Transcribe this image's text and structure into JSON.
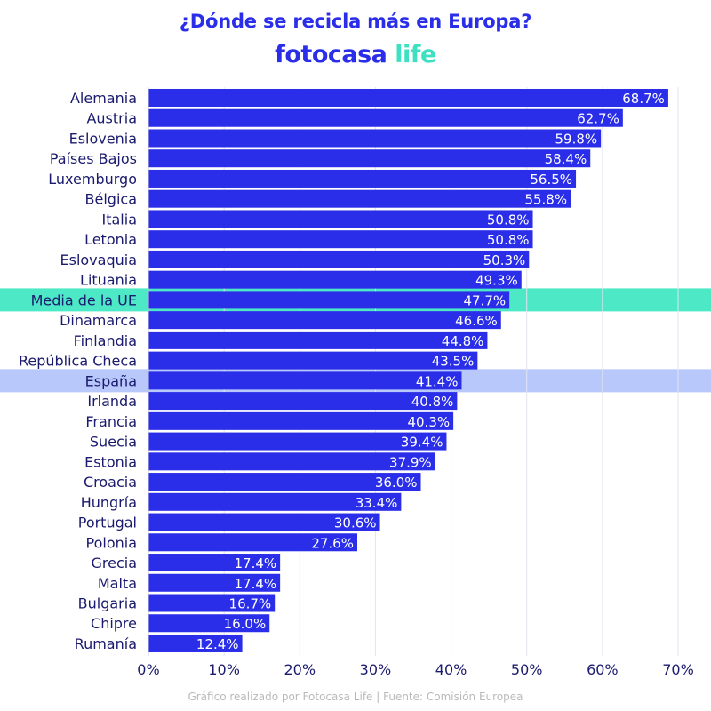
{
  "header": {
    "title": "¿Dónde se recicla más en Europa?",
    "brand_main": "fotocasa ",
    "brand_accent": "life"
  },
  "footer": {
    "source": "Gráfico realizado por Fotocasa Life | Fuente: Comisión Europea"
  },
  "colors": {
    "bar": "#2a2ee8",
    "highlight_eu": "#4de8c6",
    "highlight_spain": "#b8c8fb",
    "text": "#1a1a6e",
    "grid": "#e2e4ef"
  },
  "chart_data": {
    "type": "bar",
    "orientation": "horizontal",
    "categories": [
      "Alemania",
      "Austria",
      "Eslovenia",
      "Países Bajos",
      "Luxemburgo",
      "Bélgica",
      "Italia",
      "Letonia",
      "Eslovaquia",
      "Lituania",
      "Media de la UE",
      "Dinamarca",
      "Finlandia",
      "República Checa",
      "España",
      "Irlanda",
      "Francia",
      "Suecia",
      "Estonia",
      "Croacia",
      "Hungría",
      "Portugal",
      "Polonia",
      "Grecia",
      "Malta",
      "Bulgaria",
      "Chipre",
      "Rumanía"
    ],
    "values": [
      68.7,
      62.7,
      59.8,
      58.4,
      56.5,
      55.8,
      50.8,
      50.8,
      50.3,
      49.3,
      47.7,
      46.6,
      44.8,
      43.5,
      41.4,
      40.8,
      40.3,
      39.4,
      37.9,
      36.0,
      33.4,
      30.6,
      27.6,
      17.4,
      17.4,
      16.7,
      16.0,
      12.4
    ],
    "value_labels": [
      "68.7%",
      "62.7%",
      "59.8%",
      "58.4%",
      "56.5%",
      "55.8%",
      "50.8%",
      "50.8%",
      "50.3%",
      "49.3%",
      "47.7%",
      "46.6%",
      "44.8%",
      "43.5%",
      "41.4%",
      "40.8%",
      "40.3%",
      "39.4%",
      "37.9%",
      "36.0%",
      "33.4%",
      "30.6%",
      "27.6%",
      "17.4%",
      "17.4%",
      "16.7%",
      "16.0%",
      "12.4%"
    ],
    "x_ticks": [
      "0%",
      "10%",
      "20%",
      "30%",
      "40%",
      "50%",
      "60%",
      "70%"
    ],
    "xlim": [
      0,
      70
    ],
    "grid": true,
    "highlight_rows": [
      {
        "category": "Media de la UE",
        "color_key": "highlight_eu"
      },
      {
        "category": "España",
        "color_key": "highlight_spain"
      }
    ]
  }
}
